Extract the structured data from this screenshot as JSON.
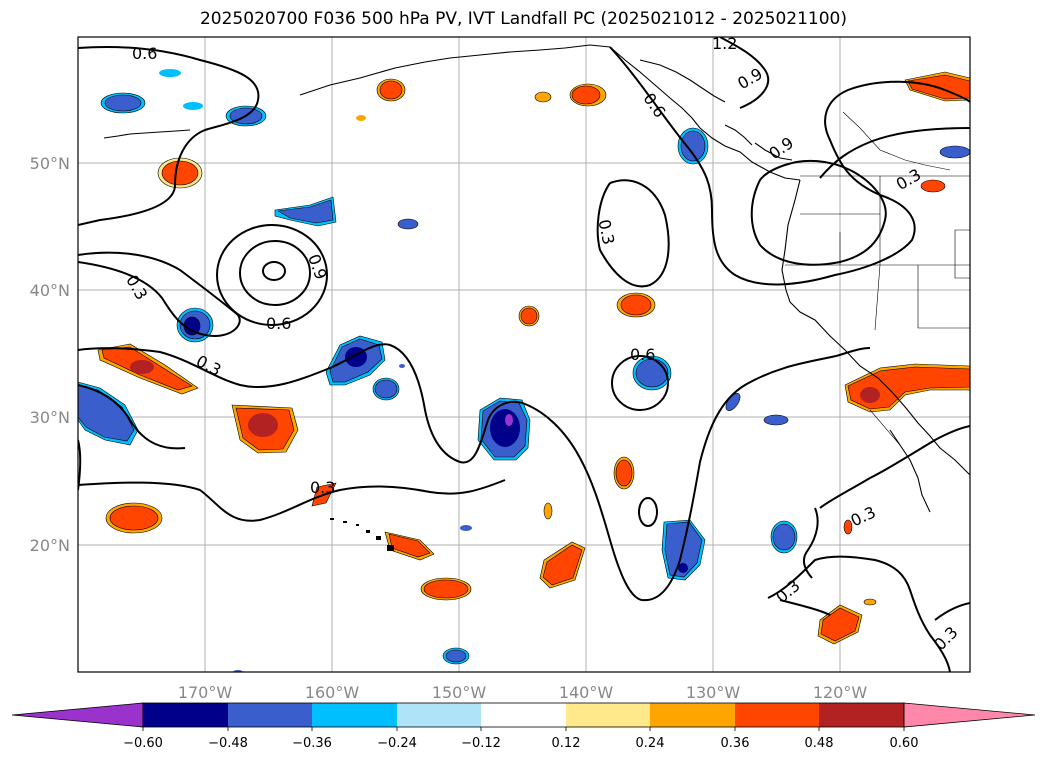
{
  "title": "2025020700 F036 500 hPa PV, IVT Landfall PC (2025021012 - 2025021100)",
  "longitude_labels": [
    "170°W",
    "160°W",
    "150°W",
    "140°W",
    "130°W",
    "120°W"
  ],
  "latitude_labels": [
    "50°N",
    "40°N",
    "30°N",
    "20°N"
  ],
  "contour_labels": [
    "0.6",
    "0.3",
    "0.6",
    "0.9",
    "0.3",
    "0.6",
    "0.3",
    "0.3",
    "0.6",
    "0.9",
    "1.2",
    "0.9",
    "0.3",
    "0.3",
    "0.3",
    "0.3"
  ],
  "colorbar": {
    "tick_labels": [
      "−0.60",
      "−0.48",
      "−0.36",
      "−0.24",
      "−0.12",
      "0.12",
      "0.24",
      "0.36",
      "0.48",
      "0.60"
    ],
    "colors": [
      "#9933cc",
      "#00008b",
      "#3a5fcd",
      "#00bfff",
      "#aee3f8",
      "#ffffff",
      "#ffe98a",
      "#ffa500",
      "#ff4500",
      "#b22222",
      "#ff88aa"
    ]
  }
}
